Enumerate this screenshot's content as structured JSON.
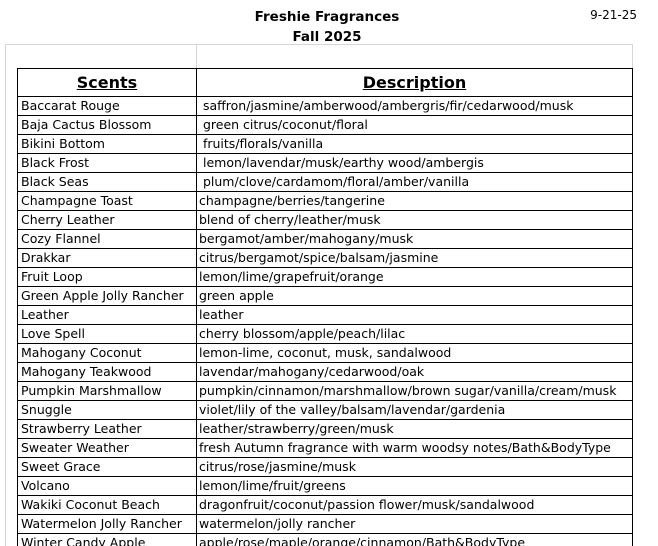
{
  "page": {
    "title": "Freshie Fragrances",
    "subtitle": "Fall 2025",
    "date": "9-21-25"
  },
  "colors": {
    "text": "#000000",
    "table_border": "#000000",
    "gridline": "#d6d6d6",
    "background": "#ffffff"
  },
  "table": {
    "scents_header": "Scents",
    "description_header": "Description",
    "rows": [
      {
        "scent": "Baccarat Rouge",
        "description": " saffron/jasmine/amberwood/ambergris/fir/cedarwood/musk"
      },
      {
        "scent": "Baja Cactus Blossom",
        "description": " green citrus/coconut/floral"
      },
      {
        "scent": "Bikini Bottom",
        "description": " fruits/florals/vanilla"
      },
      {
        "scent": "Black Frost",
        "description": " lemon/lavendar/musk/earthy wood/ambergis"
      },
      {
        "scent": "Black Seas",
        "description": " plum/clove/cardamom/floral/amber/vanilla"
      },
      {
        "scent": "Champagne Toast",
        "description": "champagne/berries/tangerine"
      },
      {
        "scent": "Cherry Leather",
        "description": "blend of cherry/leather/musk"
      },
      {
        "scent": "Cozy Flannel",
        "description": "bergamot/amber/mahogany/musk"
      },
      {
        "scent": "Drakkar",
        "description": "citrus/bergamot/spice/balsam/jasmine"
      },
      {
        "scent": "Fruit Loop",
        "description": "lemon/lime/grapefruit/orange"
      },
      {
        "scent": "Green Apple Jolly Rancher",
        "description": "green apple"
      },
      {
        "scent": "Leather",
        "description": "leather"
      },
      {
        "scent": "Love Spell",
        "description": "cherry blossom/apple/peach/lilac"
      },
      {
        "scent": "Mahogany Coconut",
        "description": "lemon-lime, coconut, musk, sandalwood"
      },
      {
        "scent": "Mahogany Teakwood",
        "description": "lavendar/mahogany/cedarwood/oak"
      },
      {
        "scent": "Pumpkin Marshmallow",
        "description": "pumpkin/cinnamon/marshmallow/brown sugar/vanilla/cream/musk"
      },
      {
        "scent": "Snuggle",
        "description": "violet/lily of the valley/balsam/lavendar/gardenia"
      },
      {
        "scent": "Strawberry Leather",
        "description": "leather/strawberry/green/musk"
      },
      {
        "scent": "Sweater Weather",
        "description": "fresh Autumn fragrance with warm woodsy notes/Bath&BodyType"
      },
      {
        "scent": "Sweet Grace",
        "description": "citrus/rose/jasmine/musk"
      },
      {
        "scent": "Volcano",
        "description": "lemon/lime/fruit/greens"
      },
      {
        "scent": "Wakiki Coconut Beach",
        "description": "dragonfruit/coconut/passion flower/musk/sandalwood"
      },
      {
        "scent": "Watermelon Jolly Rancher",
        "description": "watermelon/jolly rancher"
      },
      {
        "scent": "Winter Candy Apple",
        "description": "apple/rose/maple/orange/cinnamon/Bath&BodyType"
      }
    ]
  }
}
